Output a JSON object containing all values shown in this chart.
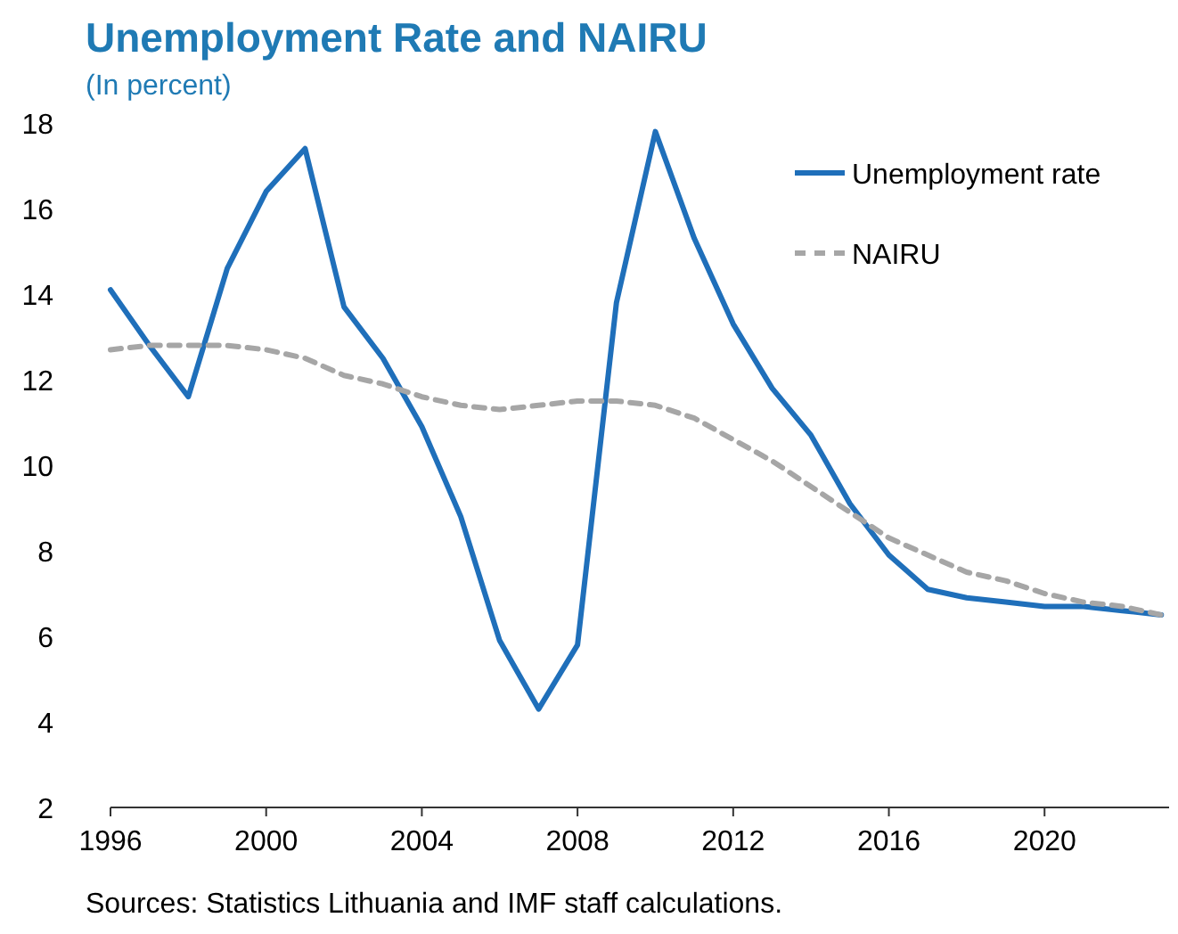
{
  "chart_data": {
    "type": "line",
    "title": "Unemployment Rate and NAIRU",
    "subtitle": "(In percent)",
    "x": [
      1996,
      1997,
      1998,
      1999,
      2000,
      2001,
      2002,
      2003,
      2004,
      2005,
      2006,
      2007,
      2008,
      2009,
      2010,
      2011,
      2012,
      2013,
      2014,
      2015,
      2016,
      2017,
      2018,
      2019,
      2020,
      2021,
      2022,
      2023
    ],
    "series": [
      {
        "name": "Unemployment rate",
        "color": "#1f6fba",
        "line_style": "solid",
        "values": [
          14.1,
          12.8,
          11.6,
          14.6,
          16.4,
          17.4,
          13.7,
          12.5,
          10.9,
          8.8,
          5.9,
          4.3,
          5.8,
          13.8,
          17.8,
          15.3,
          13.3,
          11.8,
          10.7,
          9.1,
          7.9,
          7.1,
          6.9,
          6.8,
          6.7,
          6.7,
          6.6,
          6.5
        ]
      },
      {
        "name": "NAIRU",
        "color": "#a6a6a6",
        "line_style": "dashed",
        "values": [
          12.7,
          12.8,
          12.8,
          12.8,
          12.7,
          12.5,
          12.1,
          11.9,
          11.6,
          11.4,
          11.3,
          11.4,
          11.5,
          11.5,
          11.4,
          11.1,
          10.6,
          10.1,
          9.5,
          8.9,
          8.3,
          7.9,
          7.5,
          7.3,
          7.0,
          6.8,
          6.7,
          6.5
        ]
      }
    ],
    "xlim": [
      1996,
      2023.2
    ],
    "xticks": [
      1996,
      2000,
      2004,
      2008,
      2012,
      2016,
      2020
    ],
    "ylim": [
      2,
      18
    ],
    "yticks": [
      2,
      4,
      6,
      8,
      10,
      12,
      14,
      16,
      18
    ],
    "grid": false,
    "legend": "top right",
    "annotations": [
      "Sources: Statistics Lithuania and IMF staff calculations."
    ]
  }
}
